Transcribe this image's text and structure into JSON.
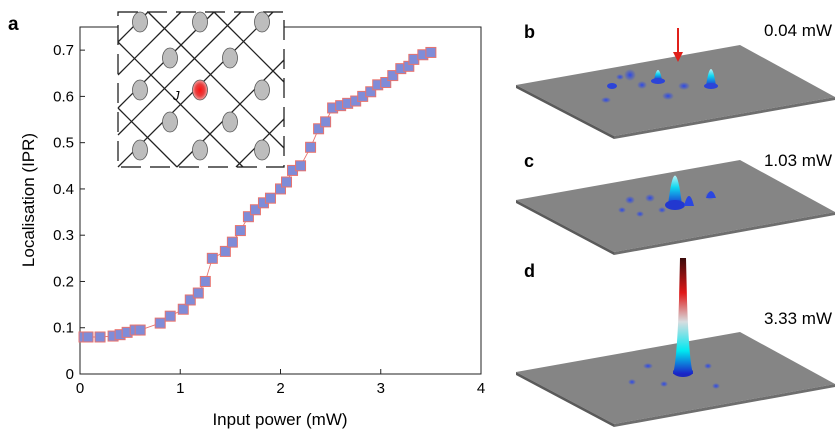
{
  "panels": {
    "a": {
      "letter": "a"
    },
    "b": {
      "letter": "b",
      "power": "0.04 mW"
    },
    "c": {
      "letter": "c",
      "power": "1.03 mW"
    },
    "d": {
      "letter": "d",
      "power": "3.33 mW"
    }
  },
  "inset": {
    "coupling_label": "J"
  },
  "colors": {
    "marker_fill": "#7f8cd8",
    "marker_edge": "#e8736e",
    "line": "#e8736e",
    "surface": "#858585",
    "surface_shadow": "#4a4a4a",
    "arrow": "#e0201a",
    "node": "#bdbdbd"
  },
  "chart_data": {
    "type": "scatter",
    "xlabel": "Input power (mW)",
    "ylabel": "Localisation (IPR)",
    "xlim": [
      0,
      4
    ],
    "ylim": [
      0,
      0.75
    ],
    "xticks": [
      "0",
      "1",
      "2",
      "3",
      "4"
    ],
    "yticks": [
      "0",
      "0.1",
      "0.2",
      "0.3",
      "0.4",
      "0.5",
      "0.6",
      "0.7"
    ],
    "grid": false,
    "series": [
      {
        "x": [
          0.04,
          0.08,
          0.2,
          0.33,
          0.4,
          0.47,
          0.55,
          0.6,
          0.8,
          0.9,
          1.03,
          1.1,
          1.18,
          1.25,
          1.32,
          1.45,
          1.52,
          1.6,
          1.68,
          1.75,
          1.83,
          1.9,
          2.0,
          2.06,
          2.12,
          2.2,
          2.3,
          2.38,
          2.45,
          2.52,
          2.6,
          2.67,
          2.75,
          2.82,
          2.9,
          2.97,
          3.05,
          3.12,
          3.2,
          3.28,
          3.33,
          3.42,
          3.5
        ],
        "y": [
          0.08,
          0.08,
          0.08,
          0.082,
          0.085,
          0.09,
          0.095,
          0.095,
          0.11,
          0.125,
          0.14,
          0.16,
          0.175,
          0.2,
          0.25,
          0.265,
          0.285,
          0.31,
          0.34,
          0.355,
          0.37,
          0.38,
          0.4,
          0.415,
          0.44,
          0.45,
          0.49,
          0.53,
          0.545,
          0.575,
          0.58,
          0.585,
          0.59,
          0.6,
          0.61,
          0.625,
          0.63,
          0.645,
          0.66,
          0.665,
          0.68,
          0.69,
          0.695
        ]
      }
    ]
  }
}
